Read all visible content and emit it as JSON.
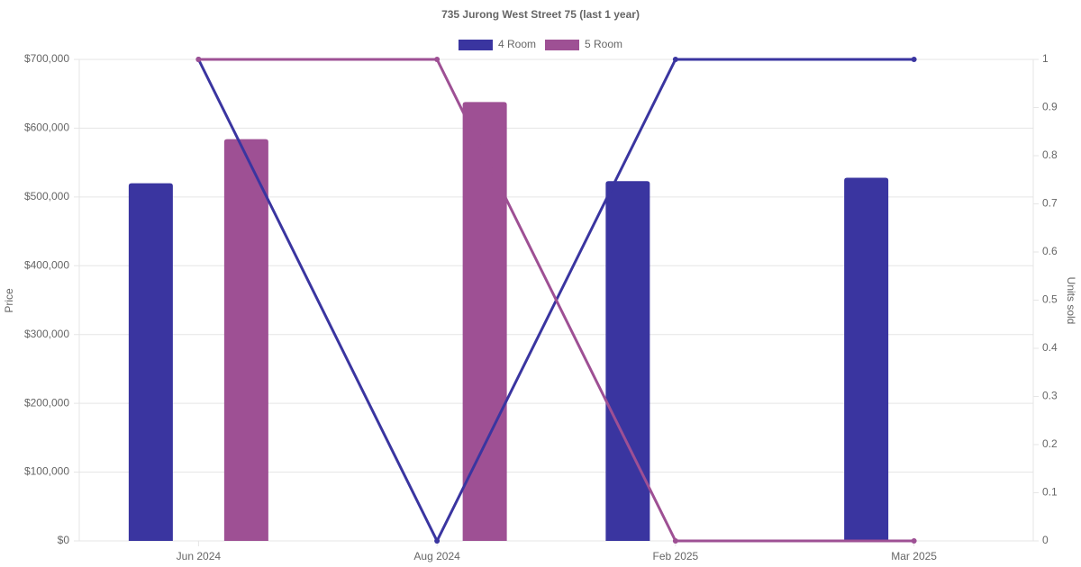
{
  "chart_data": {
    "type": "bar",
    "title": "735 Jurong West Street 75 (last 1 year)",
    "y_label": "Price",
    "y2_label": "Units sold",
    "categories": [
      "Jun 2024",
      "Aug 2024",
      "Feb 2025",
      "Mar 2025"
    ],
    "series": [
      {
        "name": "4 Room",
        "color": "#3a35a0",
        "values": [
          520000,
          null,
          523000,
          528000
        ],
        "units": [
          1,
          0,
          1,
          1
        ]
      },
      {
        "name": "5 Room",
        "color": "#9e5094",
        "values": [
          584000,
          638000,
          null,
          null
        ],
        "units": [
          1,
          1,
          0,
          0
        ]
      }
    ],
    "ylim": [
      0,
      700000
    ],
    "yticks": [
      {
        "value": 0,
        "label": "$0"
      },
      {
        "value": 100000,
        "label": "$100,000"
      },
      {
        "value": 200000,
        "label": "$200,000"
      },
      {
        "value": 300000,
        "label": "$300,000"
      },
      {
        "value": 400000,
        "label": "$400,000"
      },
      {
        "value": 500000,
        "label": "$500,000"
      },
      {
        "value": 600000,
        "label": "$600,000"
      },
      {
        "value": 700000,
        "label": "$700,000"
      }
    ],
    "y2lim": [
      0,
      1
    ],
    "y2ticks": [
      0,
      0.1,
      0.2,
      0.3,
      0.4,
      0.5,
      0.6,
      0.7,
      0.8,
      0.9,
      1
    ],
    "grid": true,
    "legend": "top"
  }
}
